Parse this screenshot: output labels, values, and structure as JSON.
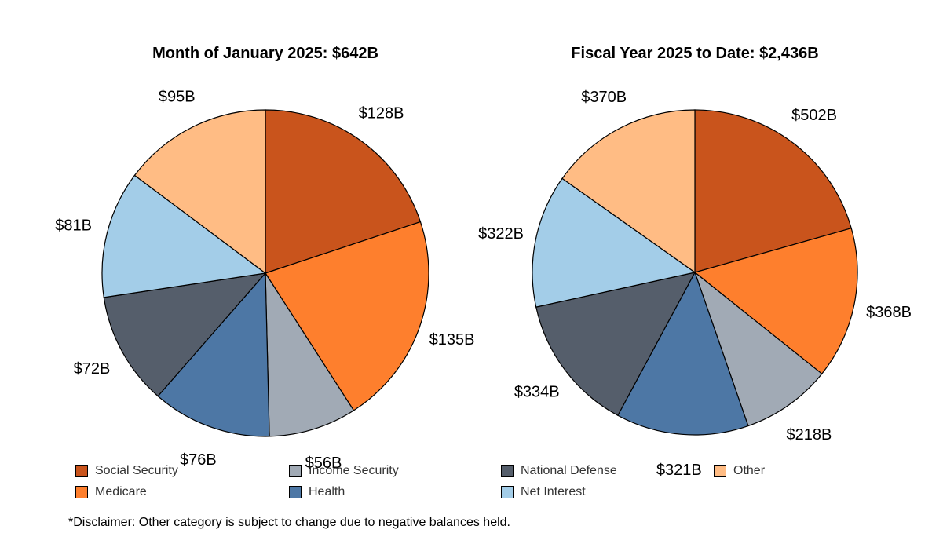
{
  "chart_data": [
    {
      "type": "pie",
      "title": "Month of January 2025: $642B",
      "categories": [
        "Social Security",
        "Medicare",
        "Income Security",
        "Health",
        "National Defense",
        "Net Interest",
        "Other"
      ],
      "values": [
        128,
        135,
        56,
        76,
        72,
        81,
        95
      ],
      "labels": [
        "$128B",
        "$135B",
        "$56B",
        "$76B",
        "$72B",
        "$81B",
        "$95B"
      ]
    },
    {
      "type": "pie",
      "title": "Fiscal Year 2025 to Date: $2,436B",
      "categories": [
        "Social Security",
        "Medicare",
        "Income Security",
        "Health",
        "National Defense",
        "Net Interest",
        "Other"
      ],
      "values": [
        502,
        368,
        218,
        321,
        334,
        322,
        370
      ],
      "labels": [
        "$502B",
        "$368B",
        "$218B",
        "$321B",
        "$334B",
        "$322B",
        "$370B"
      ]
    }
  ],
  "colors": {
    "Social Security": "#c9541c",
    "Medicare": "#fe7f2d",
    "Income Security": "#a1aab5",
    "Health": "#4d77a5",
    "National Defense": "#555e6b",
    "Net Interest": "#a3cde8",
    "Other": "#ffbc84"
  },
  "legend": [
    {
      "label": "Social Security",
      "color": "#c9541c"
    },
    {
      "label": "Medicare",
      "color": "#fe7f2d"
    },
    {
      "label": "Income Security",
      "color": "#a1aab5"
    },
    {
      "label": "Health",
      "color": "#4d77a5"
    },
    {
      "label": "National Defense",
      "color": "#555e6b"
    },
    {
      "label": "Net Interest",
      "color": "#a3cde8"
    },
    {
      "label": "Other",
      "color": "#ffbc84"
    }
  ],
  "disclaimer": "*Disclaimer: Other category is subject to change due to negative balances held."
}
